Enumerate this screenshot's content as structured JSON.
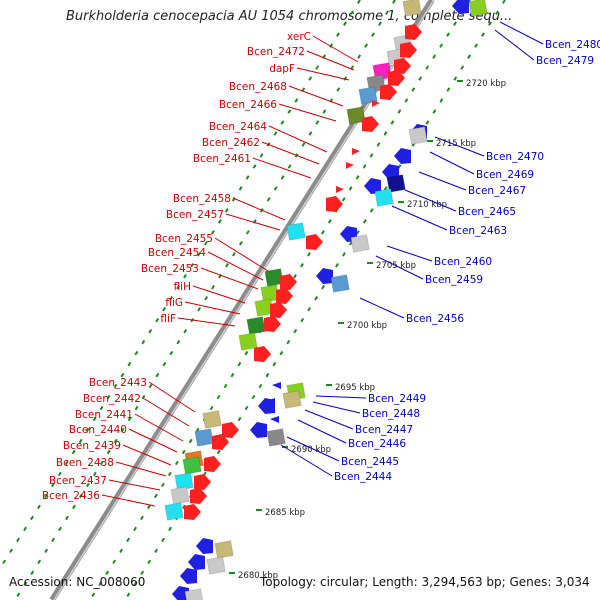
{
  "title": "Burkholderia cenocepacia AU 1054 chromosome 1, complete sequ...",
  "footer": {
    "accession": "Accession: NC_008060",
    "topology": "Topology: circular; Length: 3,294,563 bp; Genes: 3,034"
  },
  "colors": {
    "left_label": "#cc0000",
    "right_label": "#0000cc",
    "backbone": "#8c8c8c",
    "tick": "#1a8a1a"
  },
  "left_labels": [
    "xerC",
    "Bcen_2472",
    "dapF",
    "Bcen_2468",
    "Bcen_2466",
    "Bcen_2464",
    "Bcen_2462",
    "Bcen_2461",
    "Bcen_2458",
    "Bcen_2457",
    "Bcen_2455",
    "Bcen_2454",
    "Bcen_2453",
    "fliH",
    "fliG",
    "fliF",
    "Bcen_2443",
    "Bcen_2442",
    "Bcen_2441",
    "Bcen_2440",
    "Bcen_2439",
    "Bcen_2438",
    "Bcen_2437",
    "Bcen_2436"
  ],
  "right_labels": [
    "Bcen_2480",
    "Bcen_2479",
    "Bcen_2470",
    "Bcen_2469",
    "Bcen_2467",
    "Bcen_2465",
    "Bcen_2463",
    "Bcen_2460",
    "Bcen_2459",
    "Bcen_2456",
    "Bcen_2449",
    "Bcen_2448",
    "Bcen_2447",
    "Bcen_2446",
    "Bcen_2445",
    "Bcen_2444"
  ],
  "scale_labels": [
    "2720 kbp",
    "2715 kbp",
    "2710 kbp",
    "2705 kbp",
    "2700 kbp",
    "2695 kbp",
    "2690 kbp",
    "2685 kbp",
    "2680 kbp"
  ]
}
